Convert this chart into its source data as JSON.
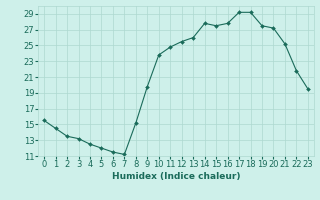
{
  "x": [
    0,
    1,
    2,
    3,
    4,
    5,
    6,
    7,
    8,
    9,
    10,
    11,
    12,
    13,
    14,
    15,
    16,
    17,
    18,
    19,
    20,
    21,
    22,
    23
  ],
  "y": [
    15.5,
    14.5,
    13.5,
    13.2,
    12.5,
    12.0,
    11.5,
    11.2,
    15.2,
    19.8,
    23.8,
    24.8,
    25.5,
    26.0,
    27.8,
    27.5,
    27.8,
    29.2,
    29.2,
    27.5,
    27.2,
    25.2,
    21.8,
    19.5
  ],
  "line_color": "#1a6b5a",
  "marker": "D",
  "marker_size": 2.0,
  "bg_color": "#cef0ea",
  "grid_color": "#aed8d0",
  "xlabel": "Humidex (Indice chaleur)",
  "ylim": [
    11,
    30
  ],
  "xlim": [
    -0.5,
    23.5
  ],
  "yticks": [
    11,
    13,
    15,
    17,
    19,
    21,
    23,
    25,
    27,
    29
  ],
  "figsize": [
    3.2,
    2.0
  ],
  "dpi": 100,
  "label_fontsize": 6.5,
  "tick_fontsize": 6.0
}
